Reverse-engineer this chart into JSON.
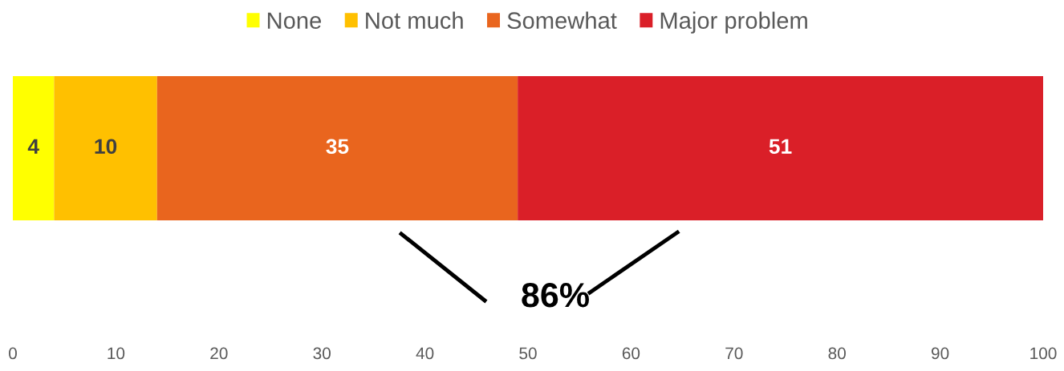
{
  "chart_data": {
    "type": "bar",
    "orientation": "horizontal",
    "stacked": true,
    "categories": [
      null
    ],
    "series": [
      {
        "name": "None",
        "color": "#ffff00",
        "values": [
          4
        ]
      },
      {
        "name": "Not much",
        "color": "#ffc000",
        "values": [
          10
        ]
      },
      {
        "name": "Somewhat",
        "color": "#e9651e",
        "values": [
          35
        ]
      },
      {
        "name": "Major problem",
        "color": "#da1f28",
        "values": [
          51
        ]
      }
    ],
    "xlim": [
      0,
      100
    ],
    "xticks": [
      0,
      10,
      20,
      30,
      40,
      50,
      60,
      70,
      80,
      90,
      100
    ],
    "data_labels": true,
    "legend": "top",
    "grid": false,
    "annotations": [
      "86%"
    ]
  }
}
